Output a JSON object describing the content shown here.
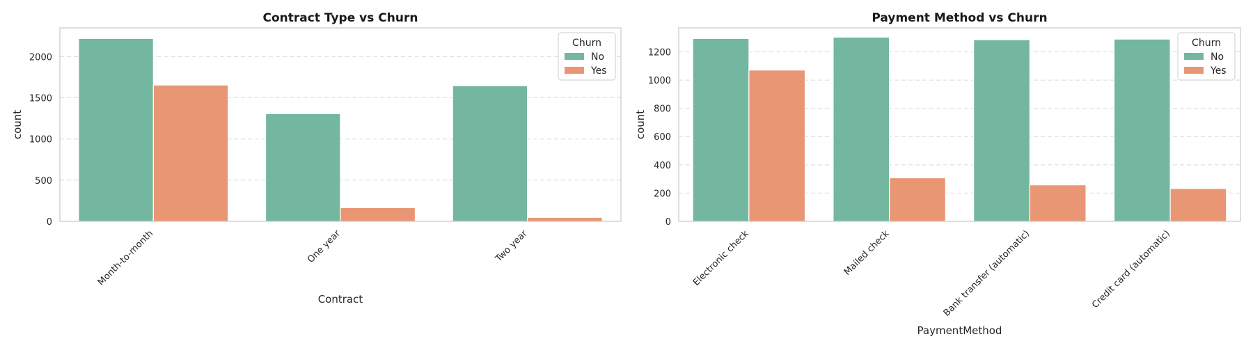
{
  "palette": {
    "No": "#73b7a0",
    "Yes": "#e99674",
    "grid": "#d9d9d9",
    "frame": "#cccccc"
  },
  "chart_data": [
    {
      "type": "bar",
      "title": "Contract Type vs Churn",
      "xlabel": "Contract",
      "ylabel": "count",
      "categories": [
        "Month-to-month",
        "One year",
        "Two year"
      ],
      "series": [
        {
          "name": "No",
          "values": [
            2220,
            1307,
            1647
          ]
        },
        {
          "name": "Yes",
          "values": [
            1655,
            166,
            48
          ]
        }
      ],
      "ylim": [
        0,
        2350
      ],
      "yticks": [
        0,
        500,
        1000,
        1500,
        2000
      ],
      "grid": "horizontal dashed",
      "legend": {
        "title": "Churn",
        "position": "top-right"
      }
    },
    {
      "type": "bar",
      "title": "Payment Method vs Churn",
      "xlabel": "PaymentMethod",
      "ylabel": "count",
      "categories": [
        "Electronic check",
        "Mailed check",
        "Bank transfer (automatic)",
        "Credit card (automatic)"
      ],
      "series": [
        {
          "name": "No",
          "values": [
            1294,
            1304,
            1286,
            1290
          ]
        },
        {
          "name": "Yes",
          "values": [
            1071,
            308,
            258,
            232
          ]
        }
      ],
      "ylim": [
        0,
        1370
      ],
      "yticks": [
        0,
        200,
        400,
        600,
        800,
        1000,
        1200
      ],
      "grid": "horizontal dashed",
      "legend": {
        "title": "Churn",
        "position": "top-right"
      }
    }
  ]
}
